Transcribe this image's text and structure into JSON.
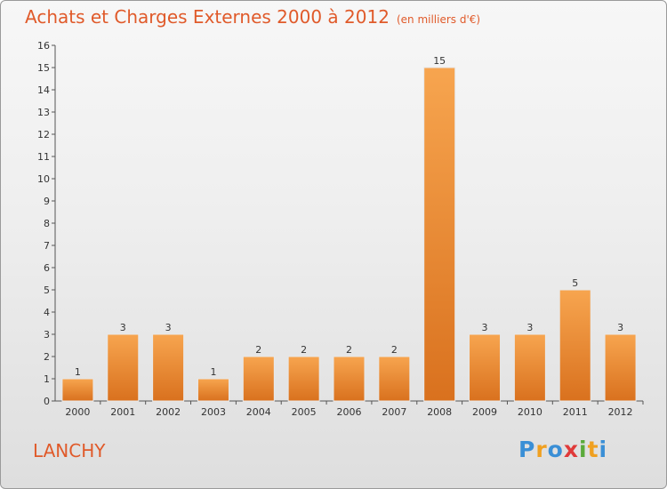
{
  "title": "Achats et Charges Externes 2000 à 2012",
  "subtitle": "(en milliers d'€)",
  "commune": "LANCHY",
  "logo": {
    "letters": [
      "P",
      "r",
      "o",
      "x",
      "i",
      "t",
      "i"
    ],
    "colors": [
      "#3a8fd6",
      "#f0a020",
      "#3a8fd6",
      "#e03a3a",
      "#5aaa3a",
      "#f0a020",
      "#3a8fd6"
    ]
  },
  "colors": {
    "title": "#e05a2a",
    "bar_top": "#f7a54f",
    "bar_bottom": "#d9711e"
  },
  "chart_data": {
    "type": "bar",
    "title": "Achats et Charges Externes 2000 à 2012",
    "subtitle": "(en milliers d'€)",
    "categories": [
      "2000",
      "2001",
      "2002",
      "2003",
      "2004",
      "2005",
      "2006",
      "2007",
      "2008",
      "2009",
      "2010",
      "2011",
      "2012"
    ],
    "values": [
      1,
      3,
      3,
      1,
      2,
      2,
      2,
      2,
      15,
      3,
      3,
      5,
      3
    ],
    "ylim": [
      0,
      16
    ],
    "yticks": [
      0,
      1,
      2,
      3,
      4,
      5,
      6,
      7,
      8,
      9,
      10,
      11,
      12,
      13,
      14,
      15,
      16
    ],
    "grid": false,
    "data_labels": true
  }
}
